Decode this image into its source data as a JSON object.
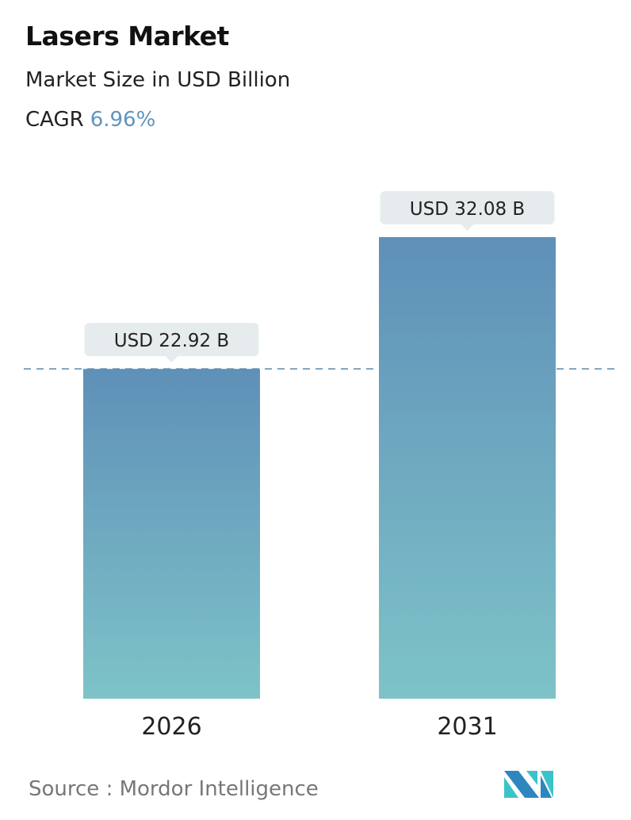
{
  "title": "Lasers Market",
  "subtitle": "Market Size in USD Billion",
  "cagr": {
    "label": "CAGR",
    "value": "6.96%"
  },
  "source": "Source :  Mordor Intelligence",
  "colors": {
    "bar_top": "#5f90b8",
    "bar_bottom": "#7ec3c8",
    "cagr": "#5f95bd",
    "dashed_line": "#5a86aa",
    "label_bg": "#e6ecee"
  },
  "chart_data": {
    "type": "bar",
    "categories": [
      "2026",
      "2031"
    ],
    "values": [
      22.92,
      32.08
    ],
    "data_labels": [
      "USD 22.92 B",
      "USD 32.08 B"
    ],
    "reference_line": 22.92,
    "ylim": [
      0,
      32.08
    ],
    "grid": false
  }
}
